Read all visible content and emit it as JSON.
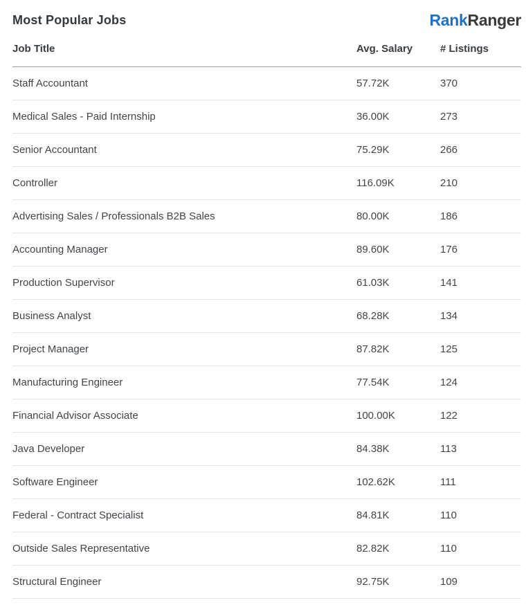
{
  "header": {
    "title": "Most Popular Jobs",
    "logo": {
      "rank": "Rank",
      "ranger": "Ranger"
    }
  },
  "chart_data": {
    "type": "table",
    "title": "Most Popular Jobs",
    "columns": [
      "Job Title",
      "Avg. Salary",
      "# Listings"
    ],
    "rows": [
      [
        "Staff Accountant",
        "57.72K",
        "370"
      ],
      [
        "Medical Sales - Paid Internship",
        "36.00K",
        "273"
      ],
      [
        "Senior Accountant",
        "75.29K",
        "266"
      ],
      [
        "Controller",
        "116.09K",
        "210"
      ],
      [
        "Advertising Sales / Professionals B2B Sales",
        "80.00K",
        "186"
      ],
      [
        "Accounting Manager",
        "89.60K",
        "176"
      ],
      [
        "Production Supervisor",
        "61.03K",
        "141"
      ],
      [
        "Business Analyst",
        "68.28K",
        "134"
      ],
      [
        "Project Manager",
        "87.82K",
        "125"
      ],
      [
        "Manufacturing Engineer",
        "77.54K",
        "124"
      ],
      [
        "Financial Advisor Associate",
        "100.00K",
        "122"
      ],
      [
        "Java Developer",
        "84.38K",
        "113"
      ],
      [
        "Software Engineer",
        "102.62K",
        "111"
      ],
      [
        "Federal - Contract Specialist",
        "84.81K",
        "110"
      ],
      [
        "Outside Sales Representative",
        "82.82K",
        "110"
      ],
      [
        "Structural Engineer",
        "92.75K",
        "109"
      ]
    ]
  },
  "colors": {
    "brand_blue": "#1e70d0",
    "logo_dark": "#3a3a3a",
    "text": "#40454a",
    "title_text": "#33383d",
    "header_rule": "#999999",
    "row_rule": "#e5e5e5",
    "background": "#ffffff"
  }
}
